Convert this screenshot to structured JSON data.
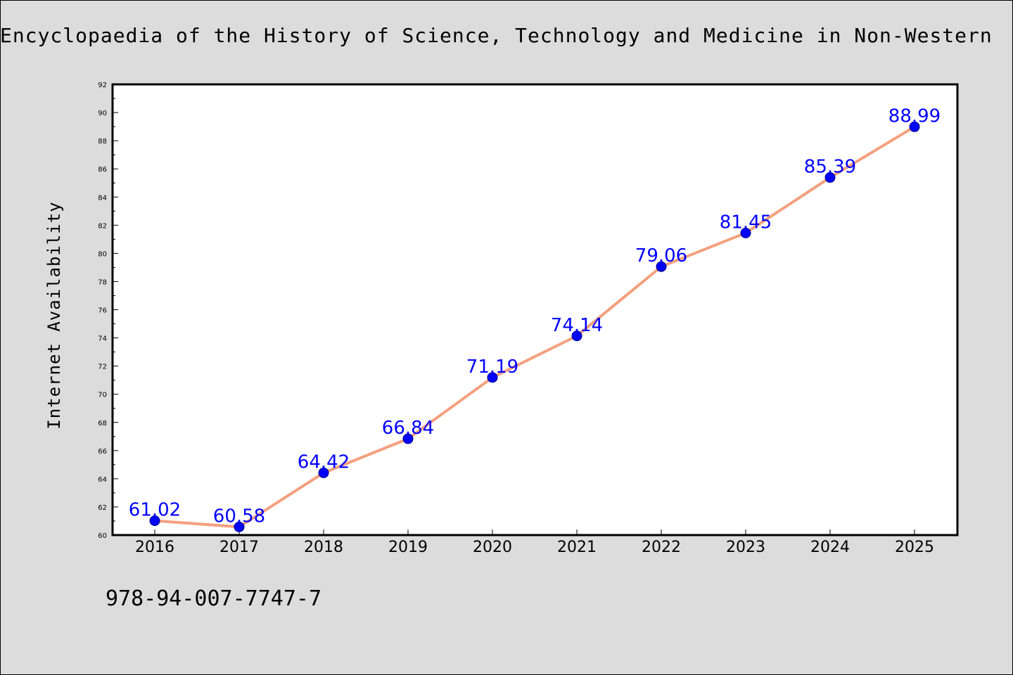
{
  "chart_data": {
    "type": "line",
    "title": "Encyclopaedia of the History of Science, Technology and Medicine in Non-Western",
    "xlabel": "",
    "ylabel": "Internet Availability",
    "x": [
      "2016",
      "2017",
      "2018",
      "2019",
      "2020",
      "2021",
      "2022",
      "2023",
      "2024",
      "2025"
    ],
    "series": [
      {
        "values": [
          61.02,
          60.58,
          64.42,
          66.84,
          71.19,
          74.14,
          79.06,
          81.45,
          85.39,
          88.99
        ],
        "labels": [
          "61.02",
          "60.58",
          "64.42",
          "66.84",
          "71.19",
          "74.14",
          "79.06",
          "81.45",
          "85.39",
          "88.99"
        ]
      }
    ],
    "ylim": [
      60,
      92
    ],
    "yticks": [
      "60",
      "62",
      "64",
      "66",
      "68",
      "70",
      "72",
      "74",
      "76",
      "78",
      "80",
      "82",
      "84",
      "86",
      "88",
      "90",
      "92"
    ],
    "grid": false,
    "legend": "none",
    "colors": {
      "line": "#f4a07f",
      "marker_fill": "#0000ff",
      "marker_edge": "#000080",
      "data_label": "#0000ff",
      "background": "#dcdcdc",
      "plot_background": "#ffffff"
    }
  },
  "footer": {
    "isbn": "978-94-007-7747-7"
  }
}
